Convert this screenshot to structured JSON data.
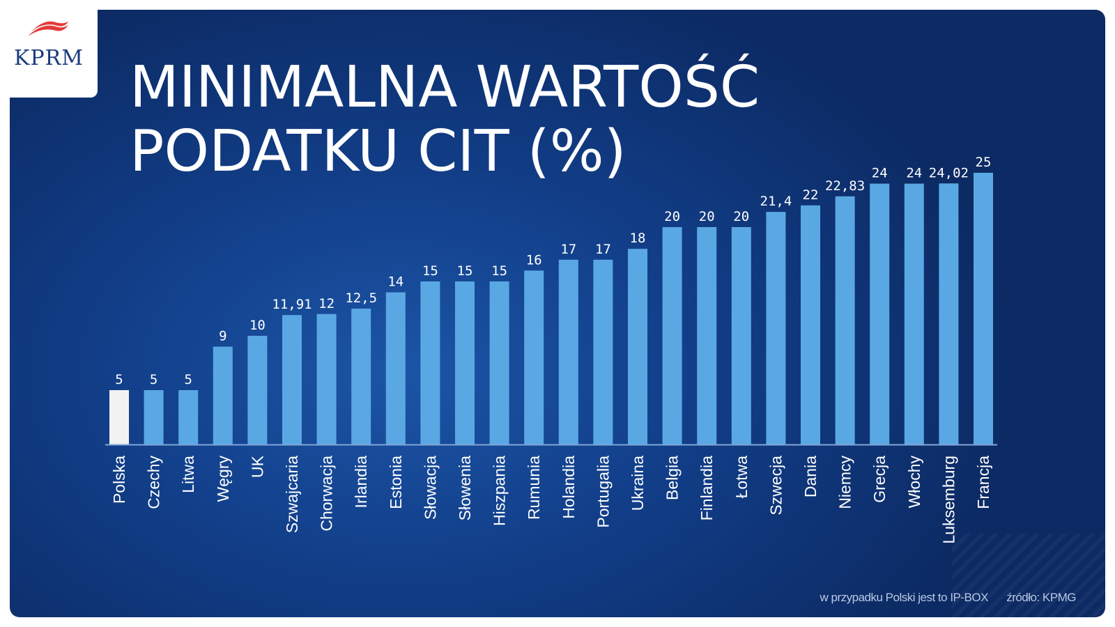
{
  "logo": {
    "text": "KPRM",
    "flag_color": "#e23a3a"
  },
  "title": {
    "line1": "MINIMALNA WARTOŚĆ",
    "line2": "PODATKU CIT (%)"
  },
  "footer": {
    "note": "w przypadku Polski jest to IP-BOX",
    "source": "źródło: KPMG"
  },
  "colors": {
    "bar": "#5aa8e3",
    "highlight_bar": "#f2f2f2",
    "label": "#ffffff",
    "axis": "#7fa6d8"
  },
  "chart_data": {
    "type": "bar",
    "title": "MINIMALNA WARTOŚĆ PODATKU CIT (%)",
    "xlabel": "",
    "ylabel": "",
    "ylim": [
      0,
      25
    ],
    "grid": false,
    "highlight_category": "Polska",
    "categories": [
      "Polska",
      "Czechy",
      "Litwa",
      "Węgry",
      "UK",
      "Szwajcaria",
      "Chorwacja",
      "Irlandia",
      "Estonia",
      "Słowacja",
      "Słowenia",
      "Hiszpania",
      "Rumunia",
      "Holandia",
      "Portugalia",
      "Ukraina",
      "Belgia",
      "Finlandia",
      "Łotwa",
      "Szwecja",
      "Dania",
      "Niemcy",
      "Grecja",
      "Włochy",
      "Luksemburg",
      "Francja"
    ],
    "values": [
      5,
      5,
      5,
      9,
      10,
      11.91,
      12,
      12.5,
      14,
      15,
      15,
      15,
      16,
      17,
      17,
      18,
      20,
      20,
      20,
      21.4,
      22,
      22.83,
      24,
      24,
      24.02,
      25
    ],
    "value_labels": [
      "5",
      "5",
      "5",
      "9",
      "10",
      "11,91",
      "12",
      "12,5",
      "14",
      "15",
      "15",
      "15",
      "16",
      "17",
      "17",
      "18",
      "20",
      "20",
      "20",
      "21,4",
      "22",
      "22,83",
      "24",
      "24",
      "24,02",
      "25"
    ]
  }
}
